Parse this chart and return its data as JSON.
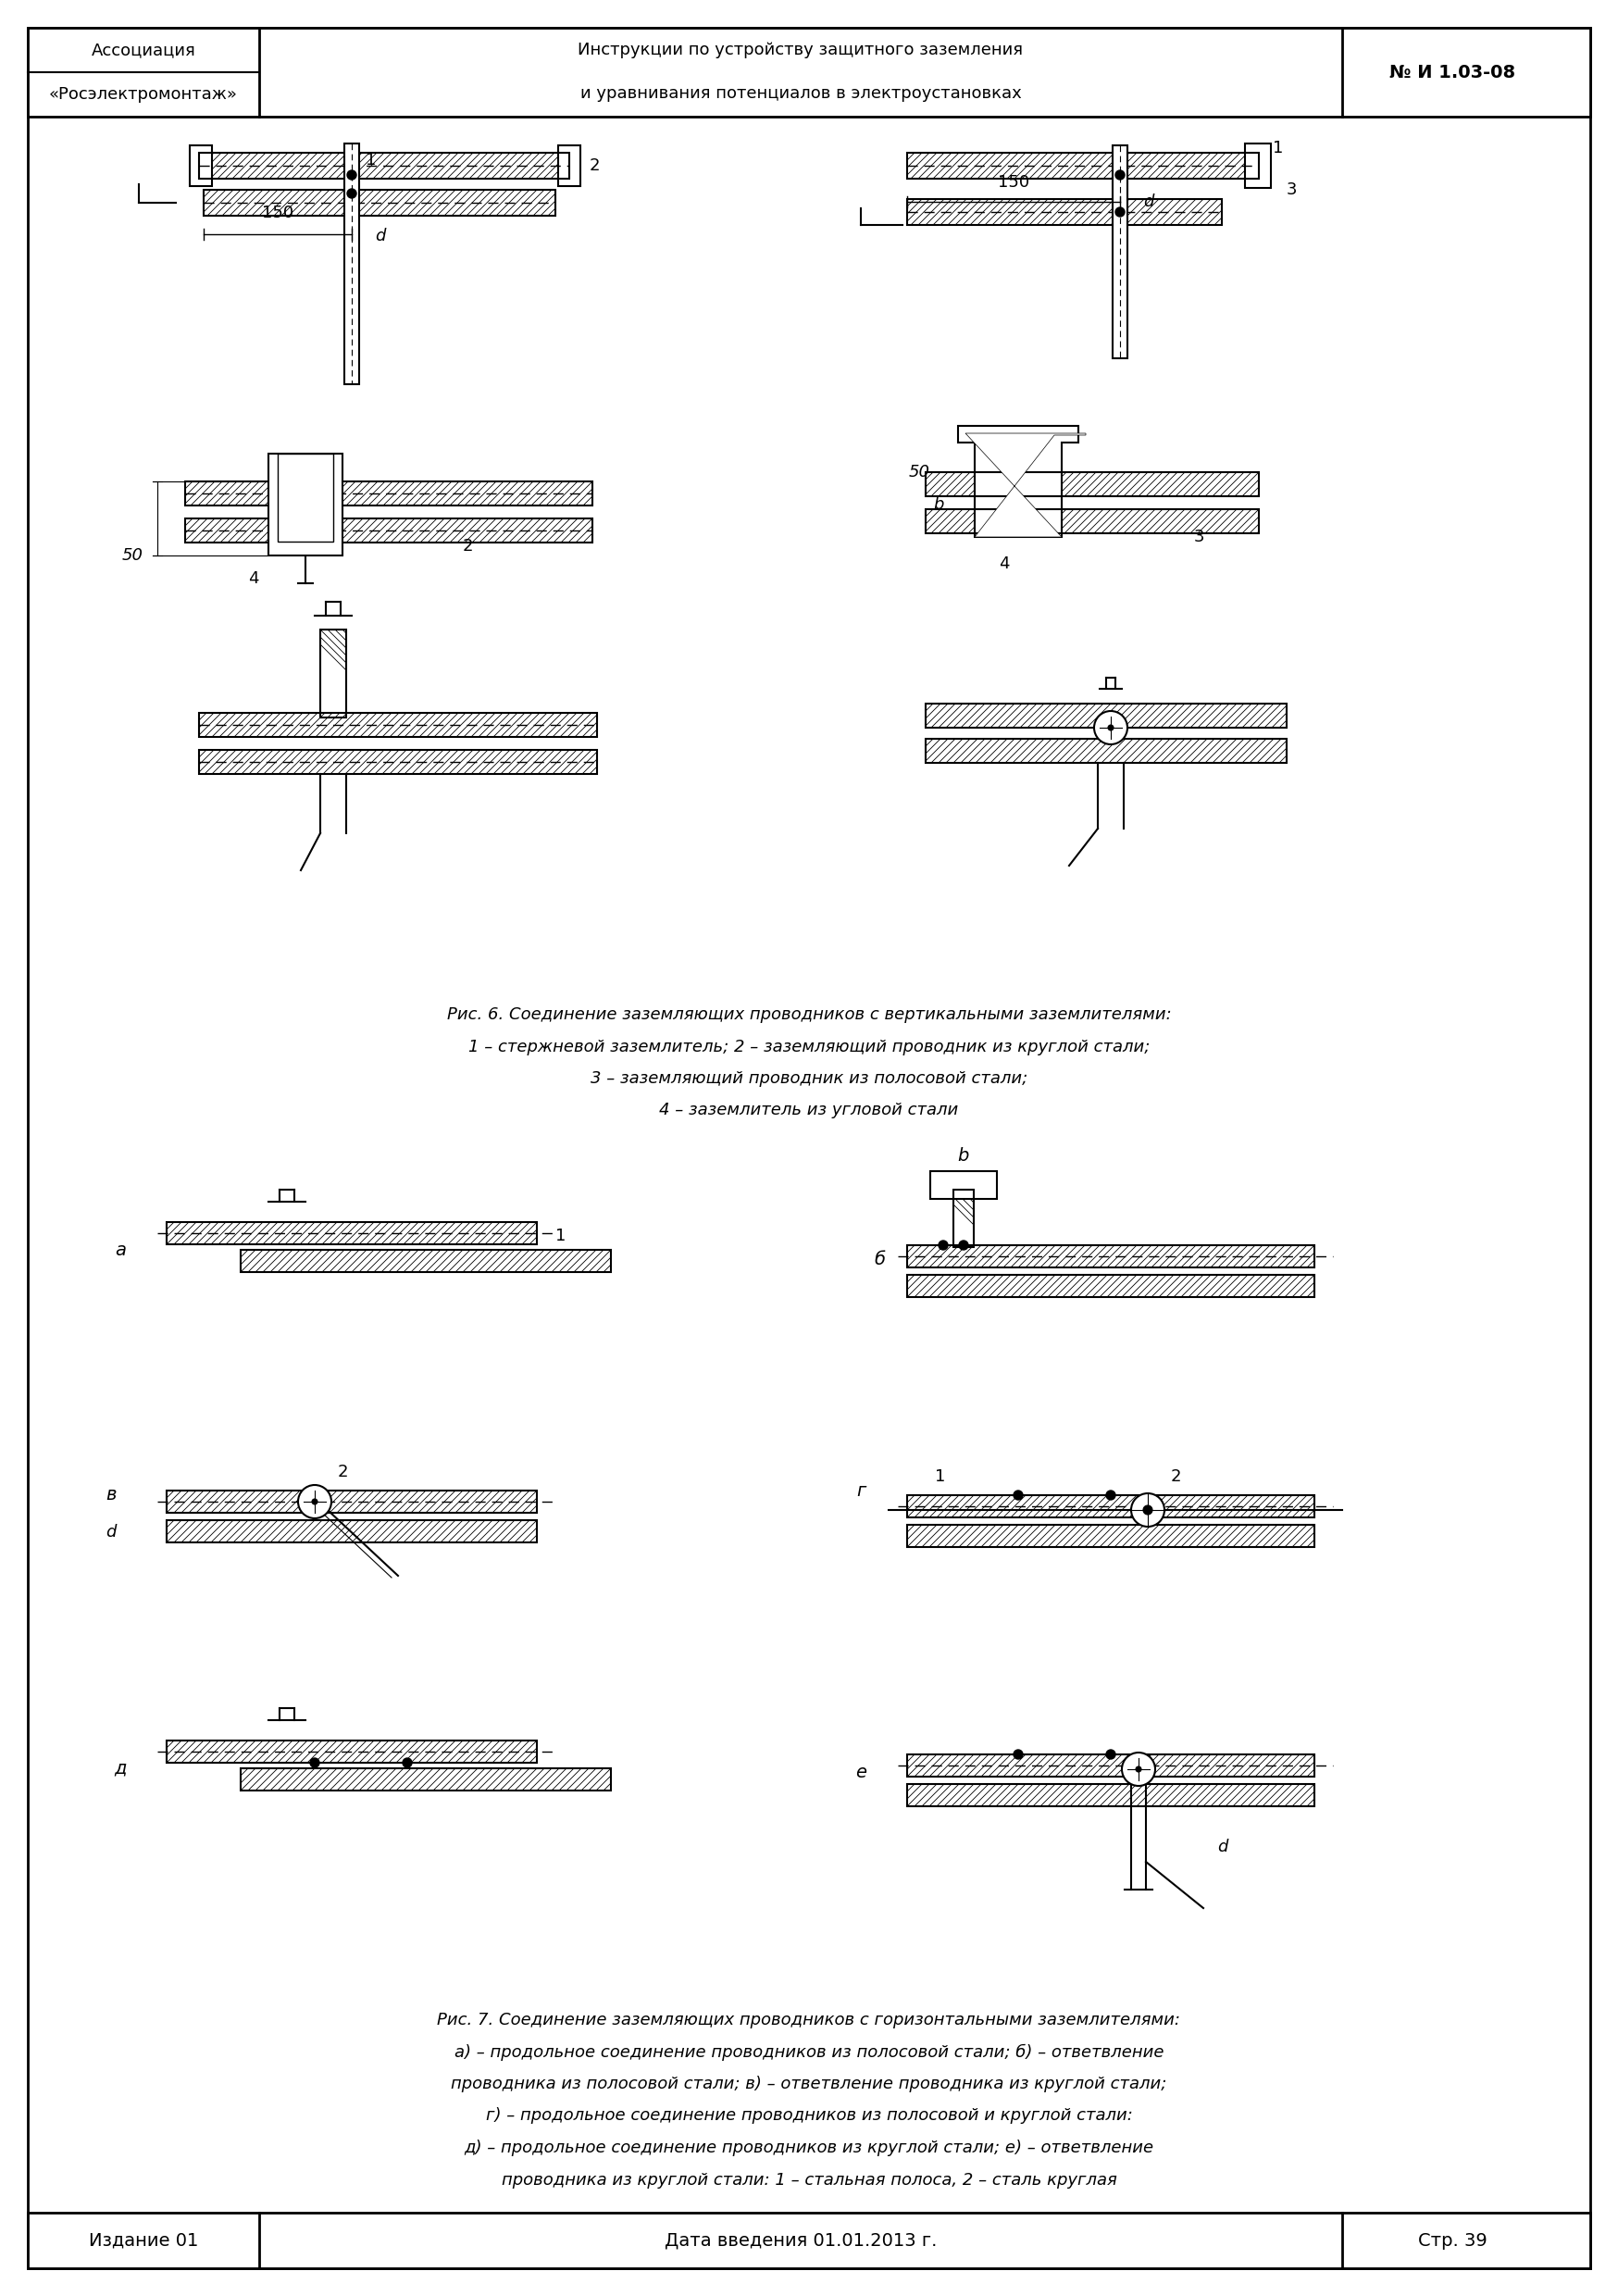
{
  "page_width": 17.48,
  "page_height": 24.8,
  "bg_color": "#ffffff",
  "header": {
    "col1_line1": "Ассоциация",
    "col1_line2": "«Росэлектромонтаж»",
    "col2_line1": "Инструкции по устройству защитного заземления",
    "col2_line2": "и уравнивания потенциалов в электроустановках",
    "col3": "№ И 1.03-08"
  },
  "footer": {
    "col1": "Издание 01",
    "col2": "Дата введения 01.01.2013 г.",
    "col3": "Стр. 39"
  },
  "fig6_caption_line1": "Рис. 6. Соединение заземляющих проводников с вертикальными заземлителями:",
  "fig6_caption_line2": "1 – стержневой заземлитель; 2 – заземляющий проводник из круглой стали;",
  "fig6_caption_line3": "3 – заземляющий проводник из полосовой стали;",
  "fig6_caption_line4": "4 – заземлитель из угловой стали",
  "fig7_caption_line1": "Рис. 7. Соединение заземляющих проводников с горизонтальными заземлителями:",
  "fig7_caption_line2": "а) – продольное соединение проводников из полосовой стали; б) – ответвление",
  "fig7_caption_line3": "проводника из полосовой стали; в) – ответвление проводника из круглой стали;",
  "fig7_caption_line4": "г) – продольное соединение проводников из полосовой и круглой стали:",
  "fig7_caption_line5": "д) – продольное соединение проводников из круглой стали; е) – ответвление",
  "fig7_caption_line6": "проводника из круглой стали: 1 – стальная полоса, 2 – сталь круглая"
}
